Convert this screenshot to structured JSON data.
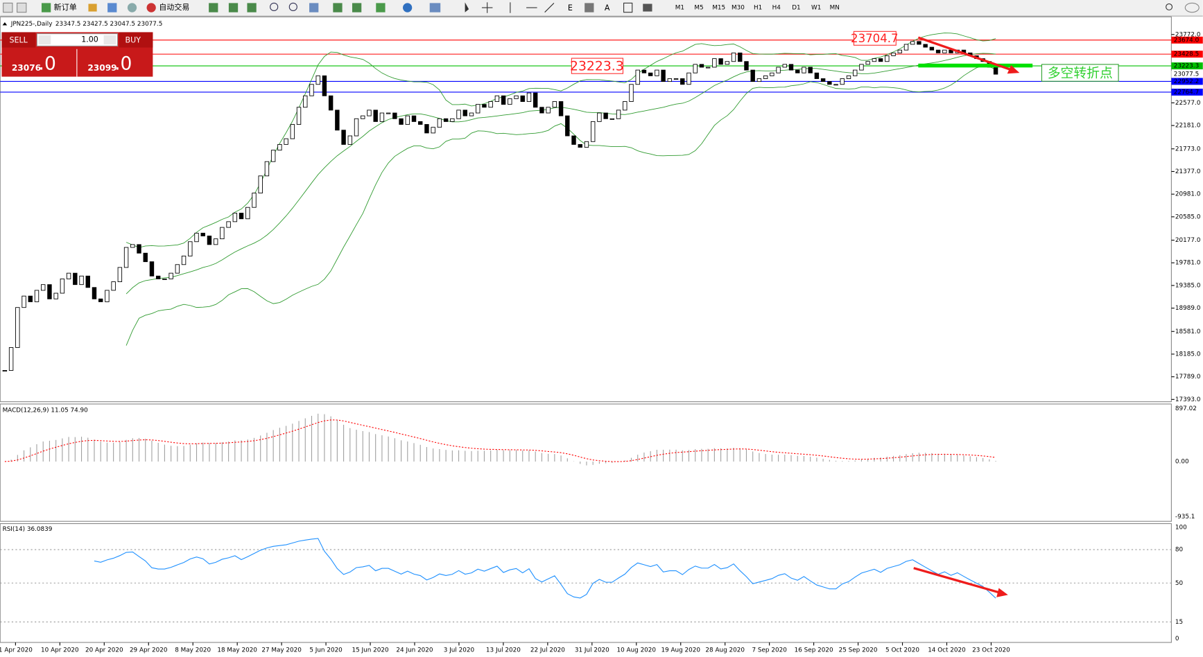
{
  "toolbar": {
    "new_order": "新订单",
    "auto_trading": "自动交易",
    "periods": [
      "M1",
      "M5",
      "M15",
      "M30",
      "H1",
      "H4",
      "D1",
      "W1",
      "MN"
    ]
  },
  "trade_panel": {
    "sell": "SELL",
    "buy": "BUY",
    "lot": "1.00",
    "bid": "23076",
    "bid_fraction": ".0",
    "ask": "23099",
    "ask_fraction": ".0"
  },
  "chart_data": {
    "type": "candlestick",
    "title": "JPN225-,Daily",
    "ohlc_header": "23347.5 23427.5 23047.5 23077.5",
    "x_labels": [
      "1 Apr 2020",
      "10 Apr 2020",
      "20 Apr 2020",
      "29 Apr 2020",
      "8 May 2020",
      "18 May 2020",
      "27 May 2020",
      "5 Jun 2020",
      "15 Jun 2020",
      "24 Jun 2020",
      "3 Jul 2020",
      "13 Jul 2020",
      "22 Jul 2020",
      "31 Jul 2020",
      "10 Aug 2020",
      "19 Aug 2020",
      "28 Aug 2020",
      "7 Sep 2020",
      "16 Sep 2020",
      "25 Sep 2020",
      "5 Oct 2020",
      "14 Oct 2020",
      "23 Oct 2020"
    ],
    "close": [
      17900,
      18300,
      19000,
      19200,
      19100,
      19300,
      19400,
      19150,
      19250,
      19500,
      19600,
      19400,
      19550,
      19350,
      19150,
      19100,
      19300,
      19450,
      19700,
      20050,
      20100,
      19950,
      19800,
      19550,
      19500,
      19500,
      19600,
      19750,
      19900,
      20150,
      20300,
      20250,
      20100,
      20200,
      20400,
      20500,
      20650,
      20550,
      20750,
      21000,
      21300,
      21550,
      21750,
      21850,
      21950,
      22200,
      22500,
      22700,
      22900,
      23050,
      22700,
      22450,
      22100,
      21850,
      22000,
      22300,
      22350,
      22450,
      22250,
      22400,
      22400,
      22300,
      22200,
      22350,
      22250,
      22200,
      22050,
      22150,
      22300,
      22250,
      22300,
      22450,
      22350,
      22400,
      22550,
      22500,
      22600,
      22700,
      22550,
      22650,
      22700,
      22600,
      22750,
      22500,
      22400,
      22500,
      22600,
      22350,
      22000,
      21850,
      21800,
      21900,
      22250,
      22400,
      22300,
      22300,
      22450,
      22600,
      22900,
      23150,
      23100,
      23050,
      23150,
      22950,
      23000,
      23000,
      22900,
      23100,
      23250,
      23200,
      23200,
      23350,
      23250,
      23300,
      23450,
      23300,
      23150,
      22950,
      23000,
      23050,
      23100,
      23200,
      23250,
      23150,
      23100,
      23200,
      23100,
      23000,
      22950,
      22900,
      22900,
      23000,
      23050,
      23150,
      23250,
      23300,
      23350,
      23300,
      23400,
      23450,
      23500,
      23600,
      23650,
      23600,
      23550,
      23500,
      23450,
      23500,
      23450,
      23500,
      23450,
      23400,
      23350,
      23300,
      23200,
      23077.5
    ],
    "ylim": [
      17353,
      24080
    ],
    "yticks": [
      {
        "value": 23772.0,
        "label": "23772.0"
      },
      {
        "value": 22577.0,
        "label": "22577.0"
      },
      {
        "value": 22181.0,
        "label": "22181.0"
      },
      {
        "value": 21773.0,
        "label": "21773.0"
      },
      {
        "value": 21377.0,
        "label": "21377.0"
      },
      {
        "value": 20981.0,
        "label": "20981.0"
      },
      {
        "value": 20585.0,
        "label": "20585.0"
      },
      {
        "value": 20177.0,
        "label": "20177.0"
      },
      {
        "value": 19781.0,
        "label": "19781.0"
      },
      {
        "value": 19385.0,
        "label": "19385.0"
      },
      {
        "value": 18989.0,
        "label": "18989.0"
      },
      {
        "value": 18581.0,
        "label": "18581.0"
      },
      {
        "value": 18185.0,
        "label": "18185.0"
      },
      {
        "value": 17789.0,
        "label": "17789.0"
      },
      {
        "value": 17393.0,
        "label": "17393.0"
      }
    ],
    "price_levels": [
      {
        "value": 23674.0,
        "label": "23674.0",
        "color": "#ff0000"
      },
      {
        "value": 23428.5,
        "label": "23428.5",
        "color": "#ff0000"
      },
      {
        "value": 23223.3,
        "label": "23223.3",
        "color": "#00c000"
      },
      {
        "value": 23077.5,
        "label": "23077.5",
        "color": "#000000"
      },
      {
        "value": 22952.2,
        "label": "22952.2",
        "color": "#0000ff"
      },
      {
        "value": 22764.7,
        "label": "22764.7",
        "color": "#0000ff"
      }
    ],
    "annotations": [
      "23704.7",
      "23223.3",
      "多空转折点"
    ],
    "band_color": "#2e9a2e",
    "macd": {
      "label": "MACD(12,26,9) 11.05 74.90",
      "fast": 12,
      "slow": 26,
      "signal": 9,
      "ylim": [
        -1013,
        975
      ],
      "yticks": [
        {
          "value": 897.02,
          "label": "897.02"
        },
        {
          "value": 0,
          "label": "0.00"
        },
        {
          "value": -935.1,
          "label": "-935.1"
        }
      ],
      "hist_color": "#a0a0a0",
      "signal_color": "#ff0000"
    },
    "rsi": {
      "label": "RSI(14) 36.0839",
      "period": 14,
      "ylim": [
        -3.4,
        103.4
      ],
      "yticks": [
        100,
        80,
        50,
        15,
        0
      ],
      "levels": [
        80,
        50,
        15
      ],
      "color": "#1e90ff"
    }
  }
}
